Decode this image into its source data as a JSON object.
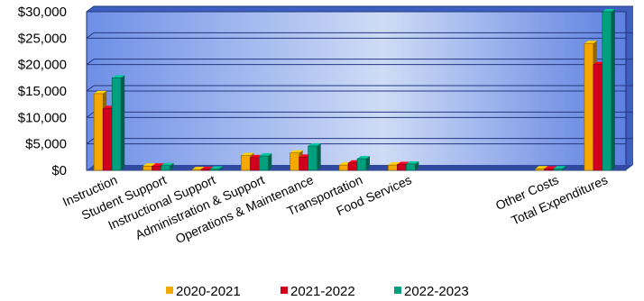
{
  "chart_data": {
    "type": "bar",
    "title": "",
    "xlabel": "",
    "ylabel": "",
    "ylim": [
      0,
      30000
    ],
    "yticks": [
      0,
      5000,
      10000,
      15000,
      20000,
      25000,
      30000
    ],
    "ytick_labels": [
      "$0",
      "$5,000",
      "$10,000",
      "$15,000",
      "$20,000",
      "$25,000",
      "$30,000"
    ],
    "grid": true,
    "legend_position": "bottom",
    "categories": [
      "Instruction",
      "Student Support",
      "Instructional Support",
      "Administration & Support",
      "Operations & Maintenance",
      "Transportation",
      "Food Services",
      "",
      "",
      "Other Costs",
      "Total Expenditures"
    ],
    "series": [
      {
        "name": "2020-2021",
        "color": "#f5a800",
        "values": [
          14500,
          800,
          150,
          2800,
          3300,
          1000,
          1000,
          null,
          null,
          300,
          24000
        ]
      },
      {
        "name": "2021-2022",
        "color": "#d0001c",
        "values": [
          11700,
          800,
          200,
          2400,
          2500,
          1400,
          1100,
          null,
          null,
          250,
          20000
        ]
      },
      {
        "name": "2022-2023",
        "color": "#00a07e",
        "values": [
          17500,
          900,
          250,
          2700,
          4600,
          2200,
          1200,
          null,
          null,
          300,
          30000
        ]
      }
    ]
  }
}
